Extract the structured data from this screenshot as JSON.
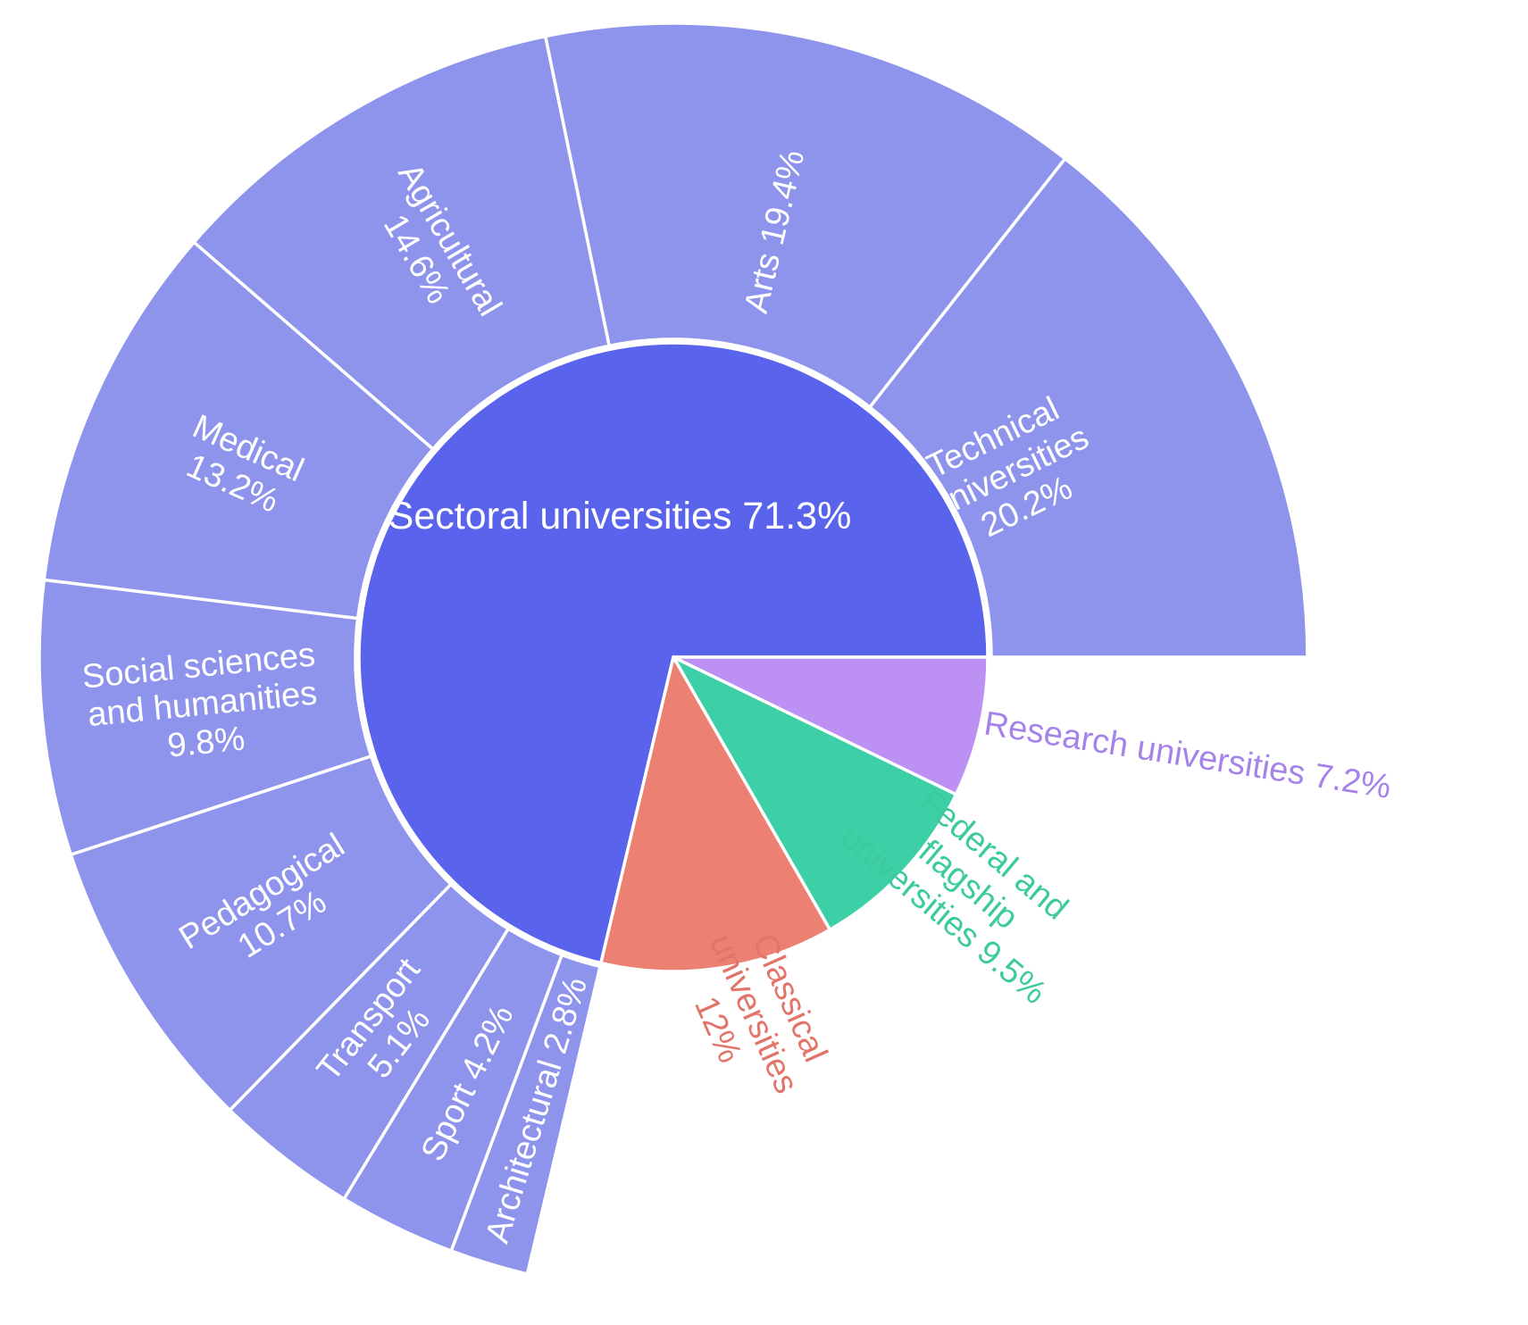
{
  "chart_data": {
    "type": "sunburst",
    "title": "",
    "background_color": "#ffffff",
    "separator_color": "#ffffff",
    "inner_ring": [
      {
        "label": "Sectoral universities",
        "value_pct": 71.3,
        "display": "Sectoral universities 71.3%",
        "lines": [
          "Sectoral universities 71.3%"
        ],
        "color": "#5a63ec",
        "label_color": "#ffffff",
        "label_placement": "inside"
      },
      {
        "label": "Research universities",
        "value_pct": 7.2,
        "display": "Research universities 7.2%",
        "lines": [
          "Research universities 7.2%"
        ],
        "color": "#bd90f3",
        "label_color": "#a583ea",
        "label_placement": "outside"
      },
      {
        "label": "Federal and flagship universities",
        "value_pct": 9.5,
        "display": "Federal and flagship universities 9.5%",
        "lines": [
          "Federal and",
          "flagship",
          "universities 9.5%"
        ],
        "color": "#3dcfa6",
        "label_color": "#3cca9e",
        "label_placement": "outside"
      },
      {
        "label": "Classical universities",
        "value_pct": 12.0,
        "display": "Classical universities 12%",
        "lines": [
          "Classical",
          "universities",
          "12%"
        ],
        "color": "#ec8072",
        "label_color": "#e2746a",
        "label_placement": "outside"
      }
    ],
    "outer_ring": {
      "parent": "Sectoral universities",
      "color": "#8e94ec",
      "label_color": "#ffffff",
      "segments": [
        {
          "label": "Technical universities",
          "pct_of_parent": 20.2,
          "display": "Technical universities 20.2%",
          "lines": [
            "Technical",
            "universities",
            "20.2%"
          ]
        },
        {
          "label": "Arts",
          "pct_of_parent": 19.4,
          "display": "Arts 19.4%",
          "lines": [
            "Arts 19.4%"
          ]
        },
        {
          "label": "Agricultural",
          "pct_of_parent": 14.6,
          "display": "Agricultural 14.6%",
          "lines": [
            "Agricultural",
            "14.6%"
          ]
        },
        {
          "label": "Medical",
          "pct_of_parent": 13.2,
          "display": "Medical 13.2%",
          "lines": [
            "Medical",
            "13.2%"
          ]
        },
        {
          "label": "Social sciences and humanities",
          "pct_of_parent": 9.8,
          "display": "Social sciences and humanities 9.8%",
          "lines": [
            "Social sciences",
            "and humanities",
            "9.8%"
          ]
        },
        {
          "label": "Pedagogical",
          "pct_of_parent": 10.7,
          "display": "Pedagogical 10.7%",
          "lines": [
            "Pedagogical",
            "10.7%"
          ]
        },
        {
          "label": "Transport",
          "pct_of_parent": 5.1,
          "display": "Transport 5.1%",
          "lines": [
            "Transport",
            "5.1%"
          ]
        },
        {
          "label": "Sport",
          "pct_of_parent": 4.2,
          "display": "Sport 4.2%",
          "lines": [
            "Sport 4.2%"
          ]
        },
        {
          "label": "Architectural",
          "pct_of_parent": 2.8,
          "display": "Architectural 2.8%",
          "lines": [
            "Architectural 2.8%"
          ]
        }
      ]
    }
  }
}
